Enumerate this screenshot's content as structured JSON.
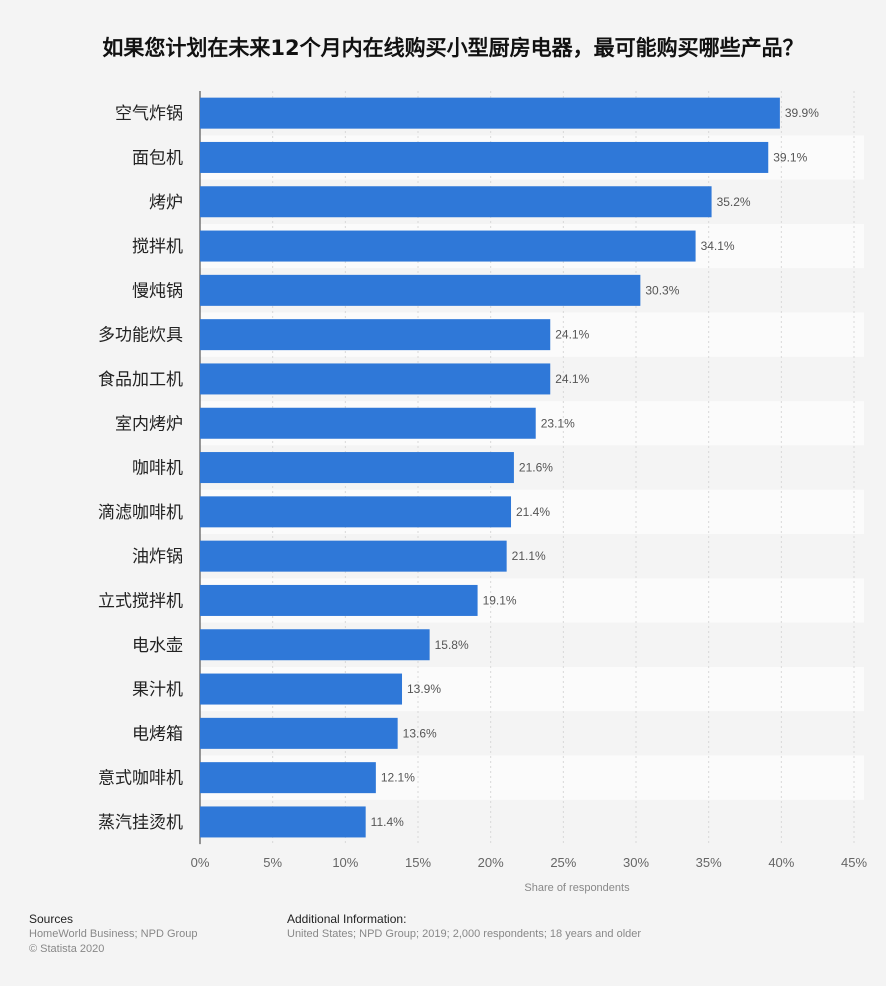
{
  "chart_data": {
    "type": "bar",
    "orientation": "horizontal",
    "title": "如果您计划在未来12个月内在线购买小型厨房电器，最可能购买哪些产品？",
    "categories": [
      "空气炸锅",
      "面包机",
      "烤炉",
      "搅拌机",
      "慢炖锅",
      "多功能炊具",
      "食品加工机",
      "室内烤炉",
      "咖啡机",
      "滴滤咖啡机",
      "油炸锅",
      "立式搅拌机",
      "电水壶",
      "果汁机",
      "电烤箱",
      "意式咖啡机",
      "蒸汽挂烫机"
    ],
    "values": [
      39.9,
      39.1,
      35.2,
      34.1,
      30.3,
      24.1,
      24.1,
      23.1,
      21.6,
      21.4,
      21.1,
      19.1,
      15.8,
      13.9,
      13.6,
      12.1,
      11.4
    ],
    "value_labels": [
      "39.9%",
      "39.1%",
      "35.2%",
      "34.1%",
      "30.3%",
      "24.1%",
      "24.1%",
      "23.1%",
      "21.6%",
      "21.4%",
      "21.1%",
      "19.1%",
      "15.8%",
      "13.9%",
      "13.6%",
      "12.1%",
      "11.4%"
    ],
    "xlabel": "Share of respondents",
    "xlim": [
      0,
      45
    ],
    "xticks": [
      "0%",
      "5%",
      "10%",
      "15%",
      "20%",
      "25%",
      "30%",
      "35%",
      "40%",
      "45%"
    ],
    "grid": true,
    "bar_color": "#2f78d8"
  },
  "footer": {
    "sources_title": "Sources",
    "sources": "HomeWorld Business; NPD Group",
    "copyright": "© Statista 2020",
    "info_title": "Additional Information:",
    "info": "United States; NPD Group; 2019; 2,000 respondents; 18 years and older"
  }
}
